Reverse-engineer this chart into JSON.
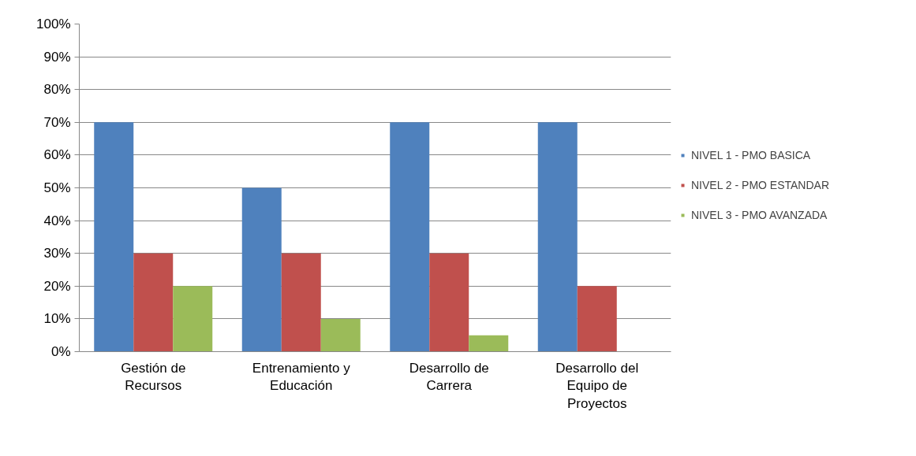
{
  "chart_data": {
    "type": "bar",
    "categories": [
      "Gestión de Recursos",
      "Entrenamiento y Educación",
      "Desarrollo de Carrera",
      "Desarrollo del Equipo de Proyectos"
    ],
    "series": [
      {
        "name": "NIVEL 1 - PMO BASICA",
        "color": "#4f81bd",
        "values": [
          70,
          50,
          70,
          70
        ]
      },
      {
        "name": "NIVEL 2 - PMO ESTANDAR",
        "color": "#c0504d",
        "values": [
          30,
          30,
          30,
          20
        ]
      },
      {
        "name": "NIVEL 3 - PMO AVANZADA",
        "color": "#9bbb59",
        "values": [
          20,
          10,
          5,
          null
        ]
      }
    ],
    "ylim": [
      0,
      100
    ],
    "yticks": [
      {
        "value": 0,
        "label": "0%"
      },
      {
        "value": 10,
        "label": "10%"
      },
      {
        "value": 20,
        "label": "20%"
      },
      {
        "value": 30,
        "label": "30%"
      },
      {
        "value": 40,
        "label": "40%"
      },
      {
        "value": 50,
        "label": "50%"
      },
      {
        "value": 60,
        "label": "60%"
      },
      {
        "value": 70,
        "label": "70%"
      },
      {
        "value": 80,
        "label": "80%"
      },
      {
        "value": 90,
        "label": "90%"
      },
      {
        "value": 100,
        "label": "100%"
      }
    ],
    "grid": "y",
    "legend": "right"
  }
}
